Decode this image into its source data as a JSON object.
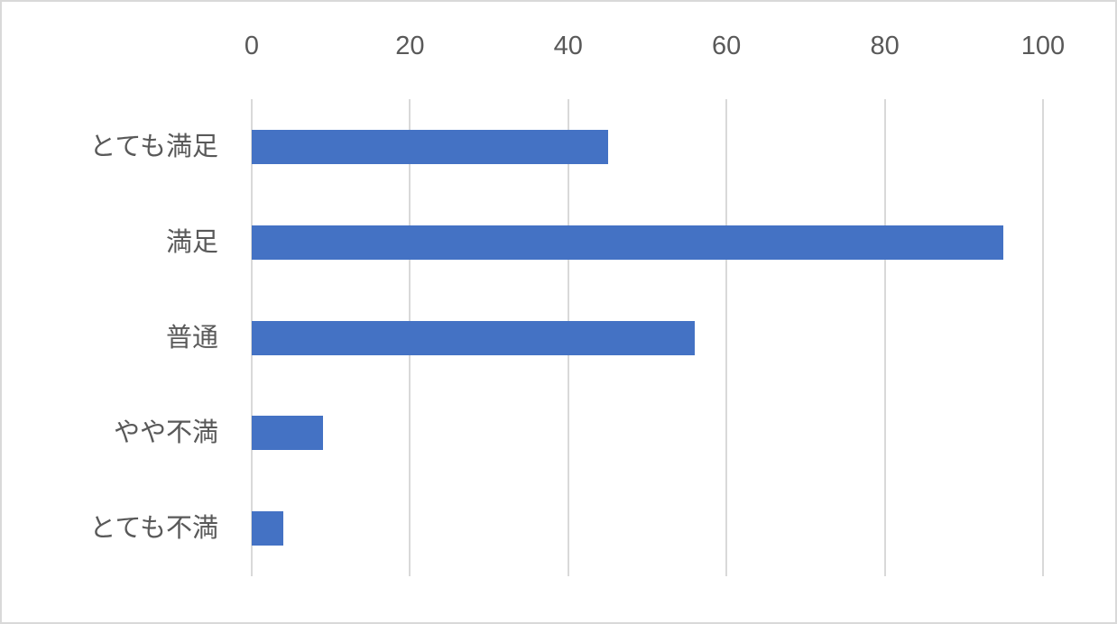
{
  "chart_data": {
    "type": "bar",
    "orientation": "horizontal",
    "title": "",
    "xlabel": "",
    "ylabel": "",
    "categories": [
      "とても満足",
      "満足",
      "普通",
      "やや不満",
      "とても不満"
    ],
    "values": [
      45,
      95,
      56,
      9,
      4
    ],
    "xlim": [
      0,
      100
    ],
    "xticks": [
      0,
      20,
      40,
      60,
      80,
      100
    ],
    "grid": true,
    "legend": false,
    "bar_color": "#4472C4",
    "gridline_color": "#d9d9d9",
    "tick_label_color": "#595959",
    "category_label_color": "#595959",
    "background_color": "#ffffff",
    "frame_border_color": "#d9d9d9"
  }
}
